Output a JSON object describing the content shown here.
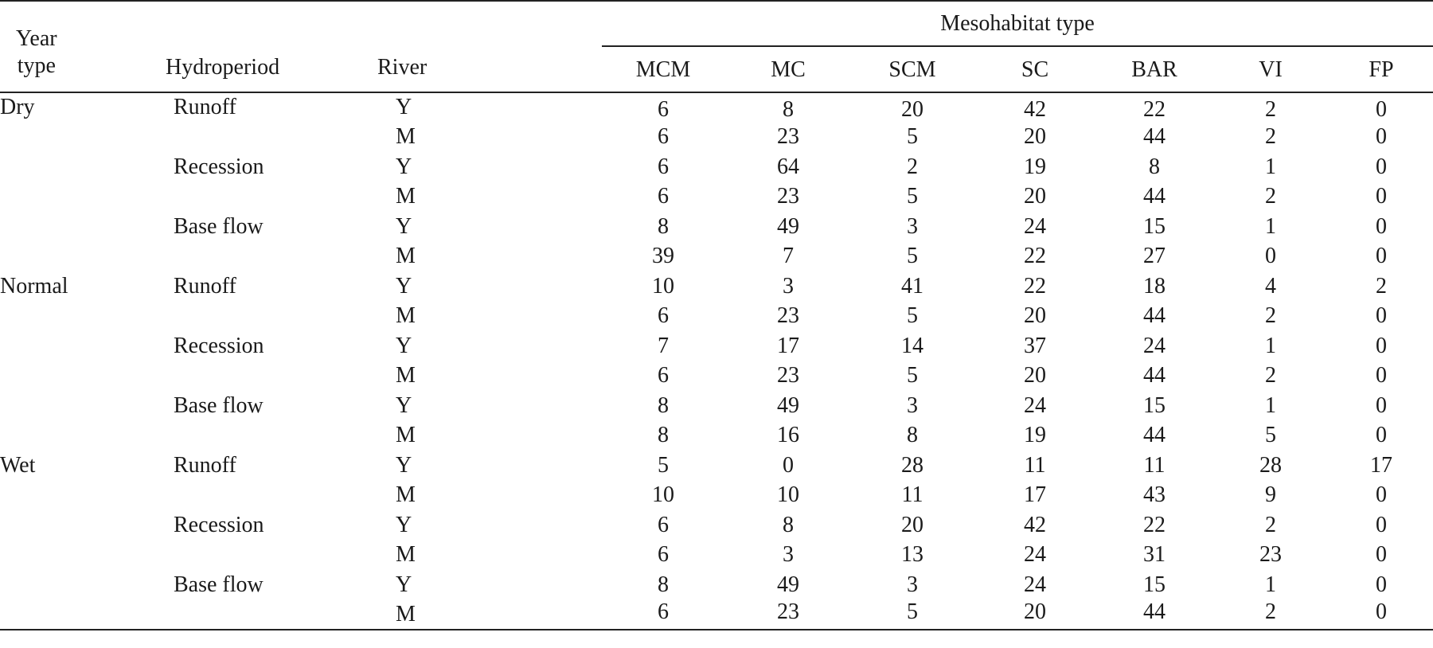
{
  "table": {
    "header": {
      "year_type_line1": "Year",
      "year_type_line2": "type",
      "hydroperiod": "Hydroperiod",
      "river": "River",
      "group": "Mesohabitat type",
      "columns": [
        "MCM",
        "MC",
        "SCM",
        "SC",
        "BAR",
        "VI",
        "FP"
      ]
    },
    "rows": [
      {
        "year_type": "Dry",
        "hydroperiod": "Runoff",
        "river": "Y",
        "values": [
          "6",
          "8",
          "20",
          "42",
          "22",
          "2",
          "0"
        ]
      },
      {
        "year_type": "",
        "hydroperiod": "",
        "river": "M",
        "values": [
          "6",
          "23",
          "5",
          "20",
          "44",
          "2",
          "0"
        ]
      },
      {
        "year_type": "",
        "hydroperiod": "Recession",
        "river": "Y",
        "values": [
          "6",
          "64",
          "2",
          "19",
          "8",
          "1",
          "0"
        ]
      },
      {
        "year_type": "",
        "hydroperiod": "",
        "river": "M",
        "values": [
          "6",
          "23",
          "5",
          "20",
          "44",
          "2",
          "0"
        ]
      },
      {
        "year_type": "",
        "hydroperiod": "Base flow",
        "river": "Y",
        "values": [
          "8",
          "49",
          "3",
          "24",
          "15",
          "1",
          "0"
        ]
      },
      {
        "year_type": "",
        "hydroperiod": "",
        "river": "M",
        "values": [
          "39",
          "7",
          "5",
          "22",
          "27",
          "0",
          "0"
        ]
      },
      {
        "year_type": "Normal",
        "hydroperiod": "Runoff",
        "river": "Y",
        "values": [
          "10",
          "3",
          "41",
          "22",
          "18",
          "4",
          "2"
        ]
      },
      {
        "year_type": "",
        "hydroperiod": "",
        "river": "M",
        "values": [
          "6",
          "23",
          "5",
          "20",
          "44",
          "2",
          "0"
        ]
      },
      {
        "year_type": "",
        "hydroperiod": "Recession",
        "river": "Y",
        "values": [
          "7",
          "17",
          "14",
          "37",
          "24",
          "1",
          "0"
        ]
      },
      {
        "year_type": "",
        "hydroperiod": "",
        "river": "M",
        "values": [
          "6",
          "23",
          "5",
          "20",
          "44",
          "2",
          "0"
        ]
      },
      {
        "year_type": "",
        "hydroperiod": "Base flow",
        "river": "Y",
        "values": [
          "8",
          "49",
          "3",
          "24",
          "15",
          "1",
          "0"
        ]
      },
      {
        "year_type": "",
        "hydroperiod": "",
        "river": "M",
        "values": [
          "8",
          "16",
          "8",
          "19",
          "44",
          "5",
          "0"
        ]
      },
      {
        "year_type": "Wet",
        "hydroperiod": "Runoff",
        "river": "Y",
        "values": [
          "5",
          "0",
          "28",
          "11",
          "11",
          "28",
          "17"
        ]
      },
      {
        "year_type": "",
        "hydroperiod": "",
        "river": "M",
        "values": [
          "10",
          "10",
          "11",
          "17",
          "43",
          "9",
          "0"
        ]
      },
      {
        "year_type": "",
        "hydroperiod": "Recession",
        "river": "Y",
        "values": [
          "6",
          "8",
          "20",
          "42",
          "22",
          "2",
          "0"
        ]
      },
      {
        "year_type": "",
        "hydroperiod": "",
        "river": "M",
        "values": [
          "6",
          "3",
          "13",
          "24",
          "31",
          "23",
          "0"
        ]
      },
      {
        "year_type": "",
        "hydroperiod": "Base flow",
        "river": "Y",
        "values": [
          "8",
          "49",
          "3",
          "24",
          "15",
          "1",
          "0"
        ]
      },
      {
        "year_type": "",
        "hydroperiod": "",
        "river": "M",
        "values": [
          "6",
          "23",
          "5",
          "20",
          "44",
          "2",
          "0"
        ]
      }
    ]
  }
}
